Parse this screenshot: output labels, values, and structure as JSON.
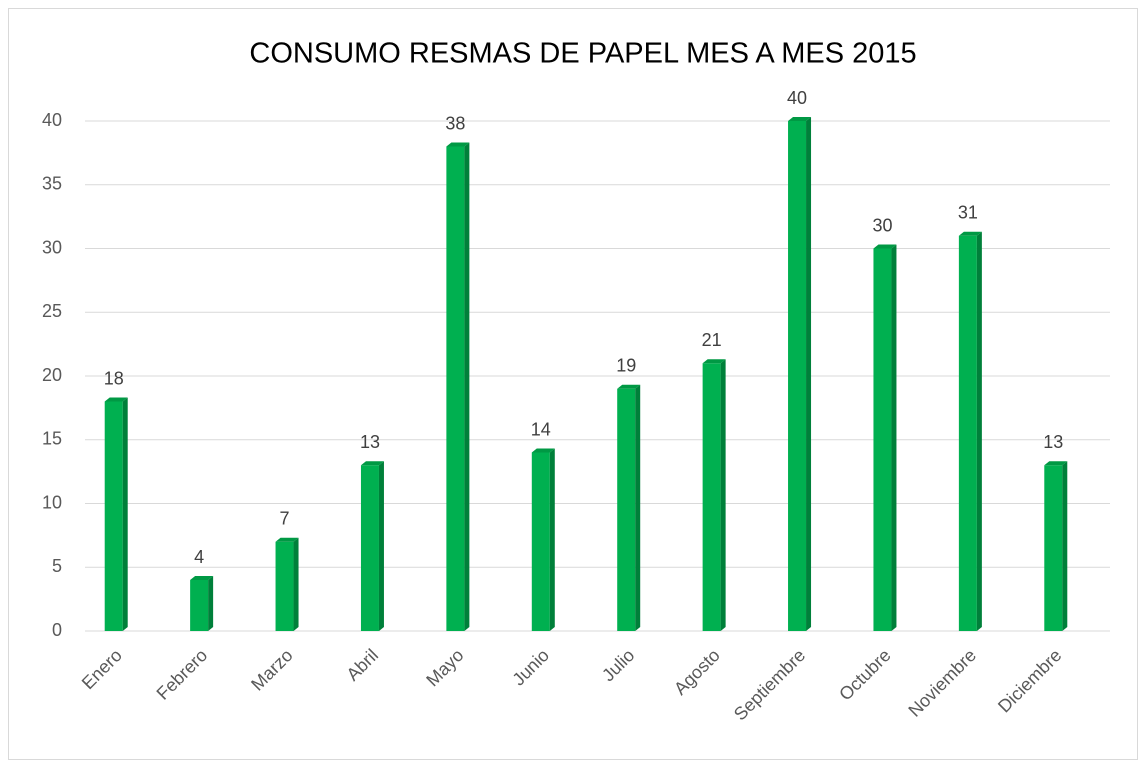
{
  "chart_data": {
    "type": "bar",
    "title": "CONSUMO RESMAS DE PAPEL MES A MES 2015",
    "categories": [
      "Enero",
      "Febrero",
      "Marzo",
      "Abril",
      "Mayo",
      "Junio",
      "Julio",
      "Agosto",
      "Septiembre",
      "Octubre",
      "Noviembre",
      "Diciembre"
    ],
    "values": [
      18,
      4,
      7,
      13,
      38,
      14,
      19,
      21,
      40,
      30,
      31,
      13
    ],
    "color": "#00b050",
    "ylim": [
      0,
      40
    ],
    "yticks": [
      0,
      5,
      10,
      15,
      20,
      25,
      30,
      35,
      40
    ],
    "grid": true
  }
}
